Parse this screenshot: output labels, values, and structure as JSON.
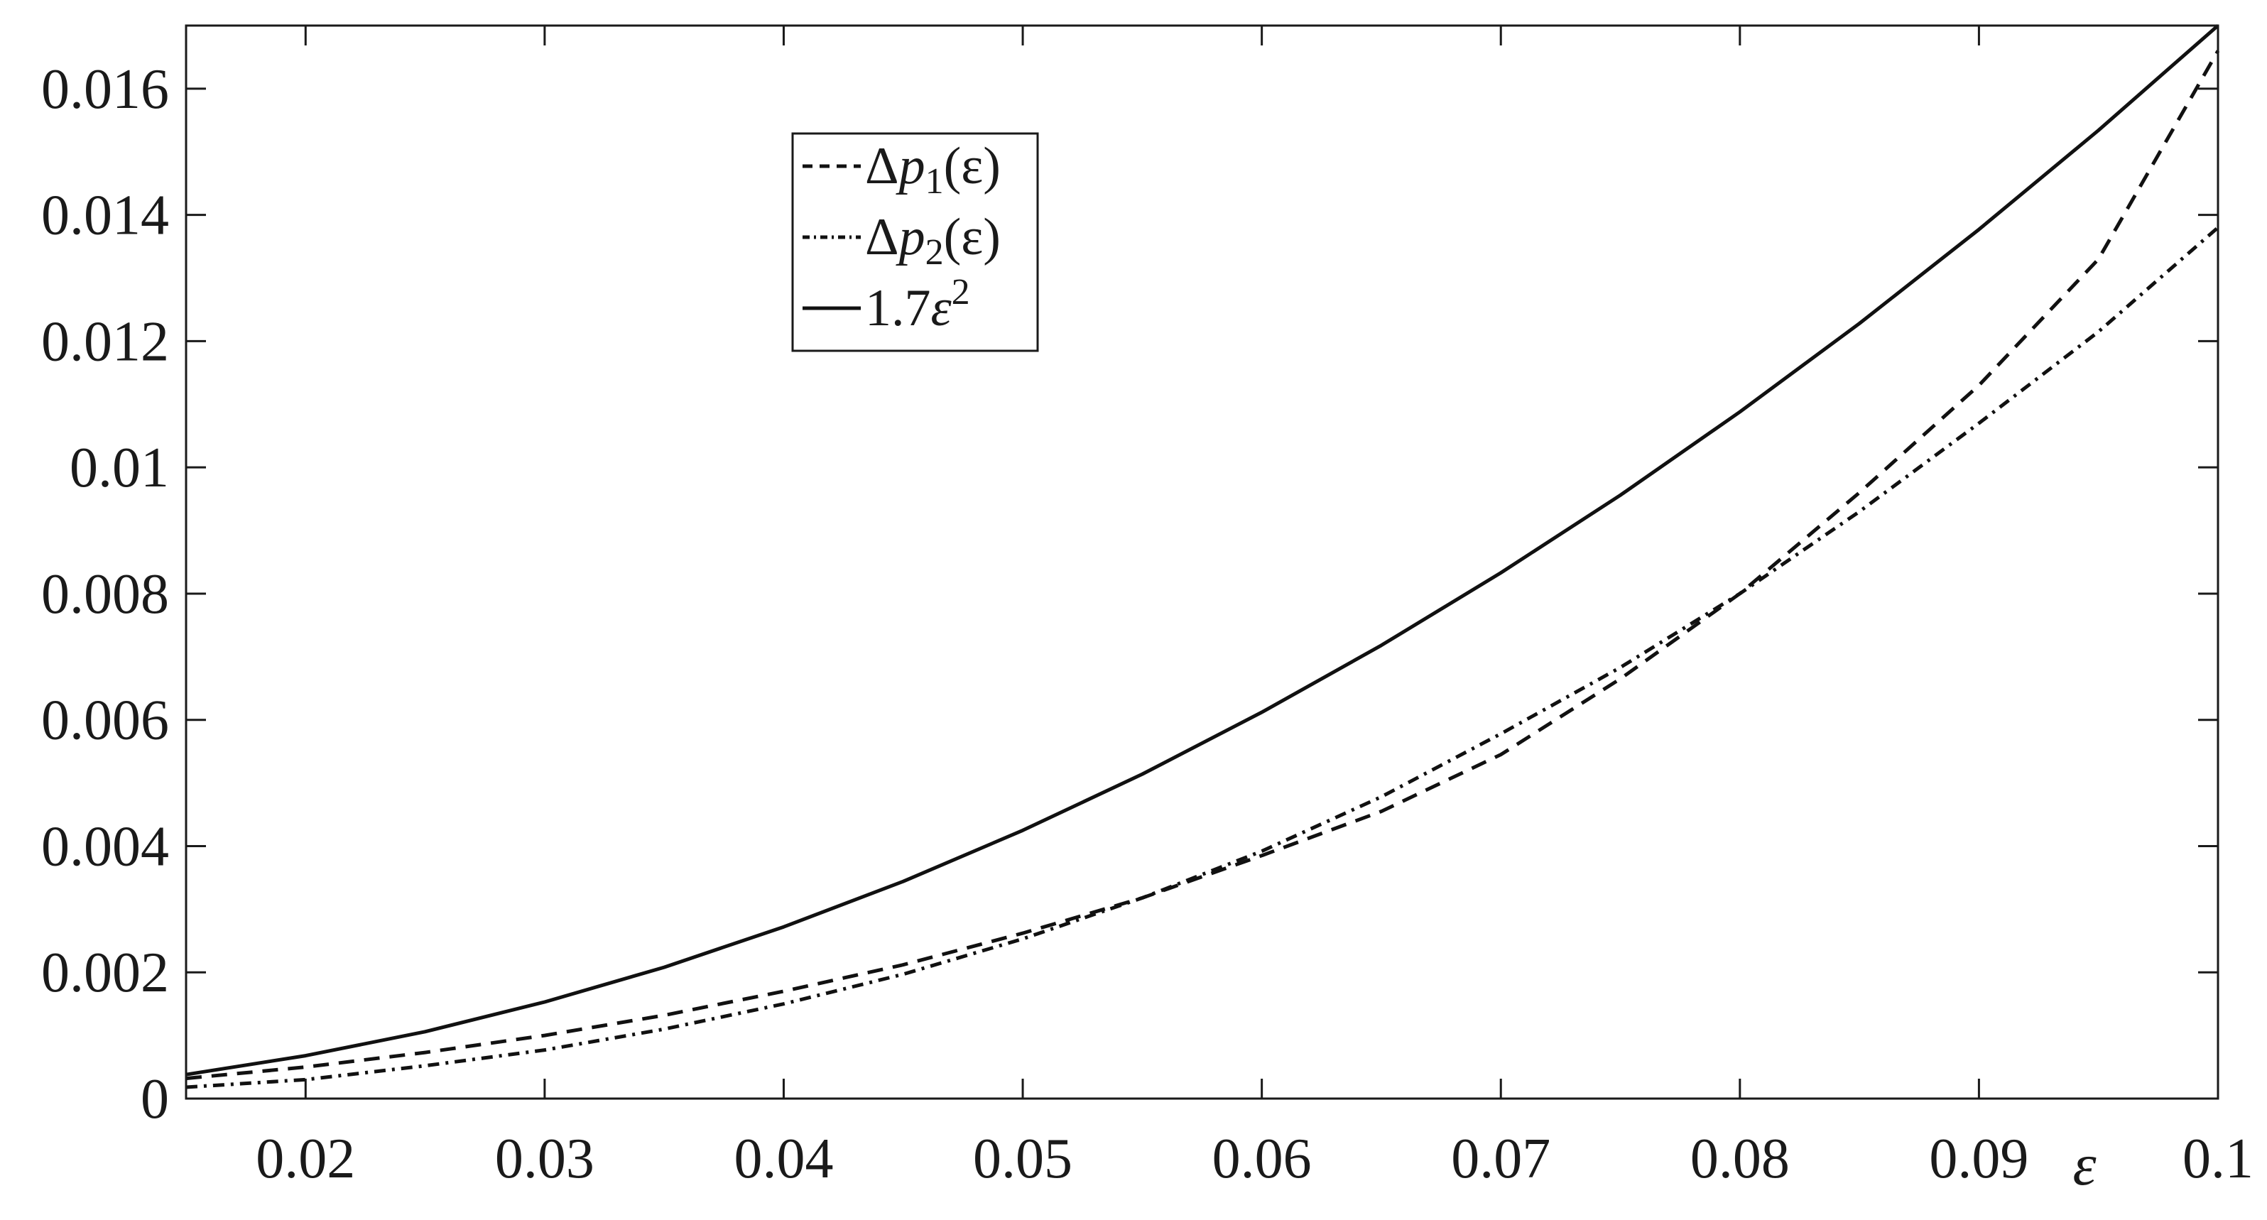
{
  "chart_data": {
    "type": "line",
    "title": "",
    "xlabel": "ε",
    "ylabel": "",
    "xlim": [
      0.015,
      0.1
    ],
    "ylim": [
      0,
      0.017
    ],
    "grid": false,
    "legend_placement": "top-left-center",
    "x_ticks": [
      "0.02",
      "0.03",
      "0.04",
      "0.05",
      "0.06",
      "0.07",
      "0.08",
      "0.09",
      "0.1"
    ],
    "y_ticks": [
      "0",
      "0.002",
      "0.004",
      "0.006",
      "0.008",
      "0.01",
      "0.012",
      "0.014",
      "0.016"
    ],
    "x": [
      0.015,
      0.02,
      0.025,
      0.03,
      0.035,
      0.04,
      0.045,
      0.05,
      0.055,
      0.06,
      0.065,
      0.07,
      0.075,
      0.08,
      0.085,
      0.09,
      0.095,
      0.1
    ],
    "series": [
      {
        "name": "Δp1(ε)",
        "legend": {
          "base": "Δ",
          "var": "p",
          "sub": "1",
          "arg": "(ε)"
        },
        "style": "dashed",
        "values": [
          0.00032,
          0.0005,
          0.00073,
          0.001,
          0.00132,
          0.0017,
          0.00212,
          0.00262,
          0.00318,
          0.00385,
          0.00455,
          0.00545,
          0.00665,
          0.008,
          0.0096,
          0.0113,
          0.0133,
          0.0166
        ]
      },
      {
        "name": "Δp2(ε)",
        "legend": {
          "base": "Δ",
          "var": "p",
          "sub": "2",
          "arg": "(ε)"
        },
        "style": "dashdot",
        "values": [
          0.00018,
          0.0003,
          0.00052,
          0.00077,
          0.0011,
          0.0015,
          0.00197,
          0.00253,
          0.00318,
          0.00392,
          0.00478,
          0.00578,
          0.00683,
          0.008,
          0.0093,
          0.0107,
          0.01215,
          0.0138
        ]
      },
      {
        "name": "1.7ε²",
        "legend": {
          "base": "1.7",
          "var": "ε",
          "sup": "2"
        },
        "style": "solid",
        "values": [
          0.00038,
          0.00068,
          0.00106,
          0.00153,
          0.00208,
          0.00272,
          0.00344,
          0.00425,
          0.00514,
          0.00612,
          0.00718,
          0.00833,
          0.00956,
          0.01088,
          0.01228,
          0.01377,
          0.01534,
          0.017
        ]
      }
    ]
  }
}
